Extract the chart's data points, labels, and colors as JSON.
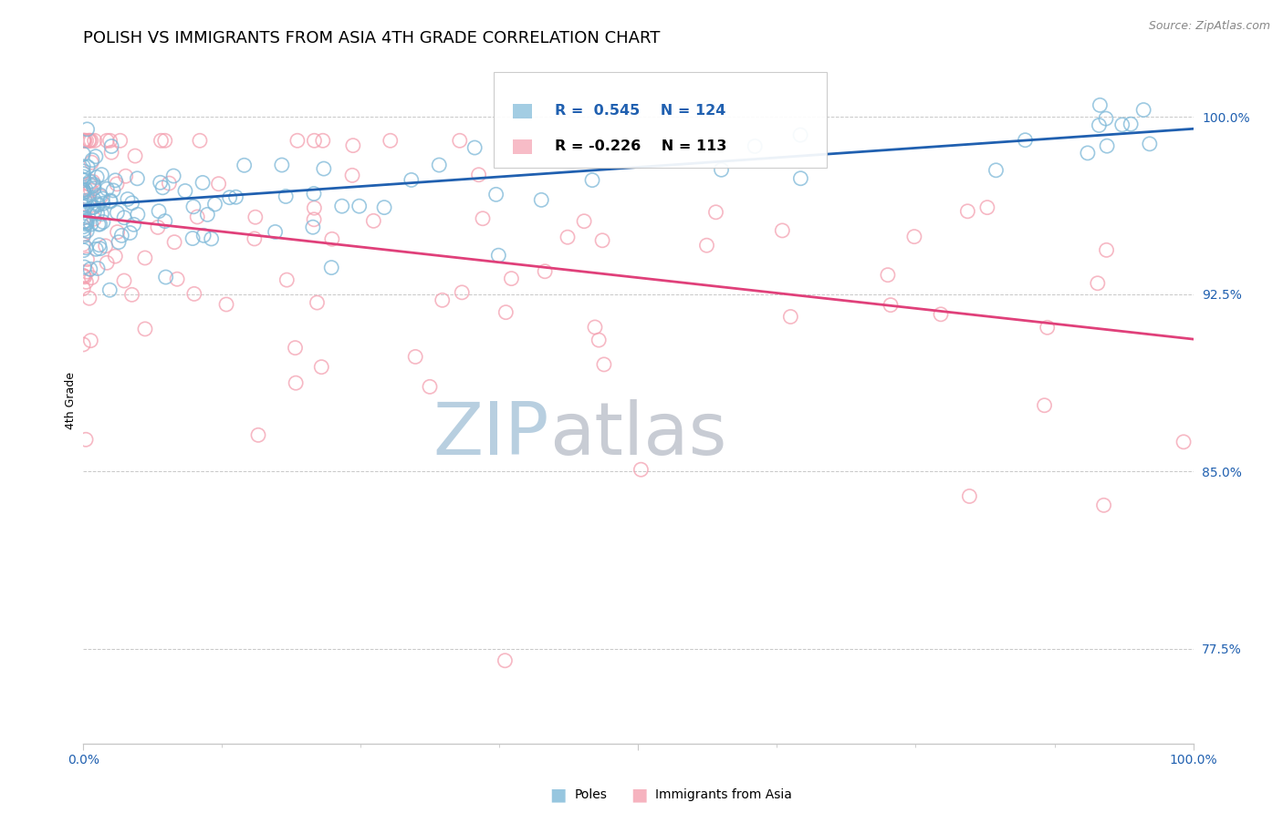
{
  "title": "POLISH VS IMMIGRANTS FROM ASIA 4TH GRADE CORRELATION CHART",
  "source_text": "Source: ZipAtlas.com",
  "ylabel": "4th Grade",
  "xlim": [
    0.0,
    1.0
  ],
  "ylim": [
    0.735,
    1.025
  ],
  "yticks": [
    0.775,
    0.85,
    0.925,
    1.0
  ],
  "ytick_labels": [
    "77.5%",
    "85.0%",
    "92.5%",
    "100.0%"
  ],
  "legend_blue_label": "Poles",
  "legend_pink_label": "Immigrants from Asia",
  "blue_R": 0.545,
  "blue_N": 124,
  "pink_R": -0.226,
  "pink_N": 113,
  "blue_color": "#7db8d8",
  "pink_color": "#f4a0b0",
  "blue_line_color": "#2060b0",
  "pink_line_color": "#e0407a",
  "background_color": "#ffffff",
  "watermark_zip_color": "#b8cfe0",
  "watermark_atlas_color": "#c8ccd4",
  "grid_color": "#c8c8c8",
  "title_fontsize": 13,
  "axis_label_fontsize": 9,
  "tick_label_fontsize": 10,
  "source_fontsize": 9,
  "blue_seed": 7,
  "pink_seed": 13,
  "blue_line_start_x": 0.0,
  "blue_line_start_y": 0.9625,
  "blue_line_end_x": 1.0,
  "blue_line_end_y": 0.995,
  "pink_line_start_x": 0.0,
  "pink_line_start_y": 0.958,
  "pink_line_end_x": 1.0,
  "pink_line_end_y": 0.906,
  "bubble_size": 120
}
